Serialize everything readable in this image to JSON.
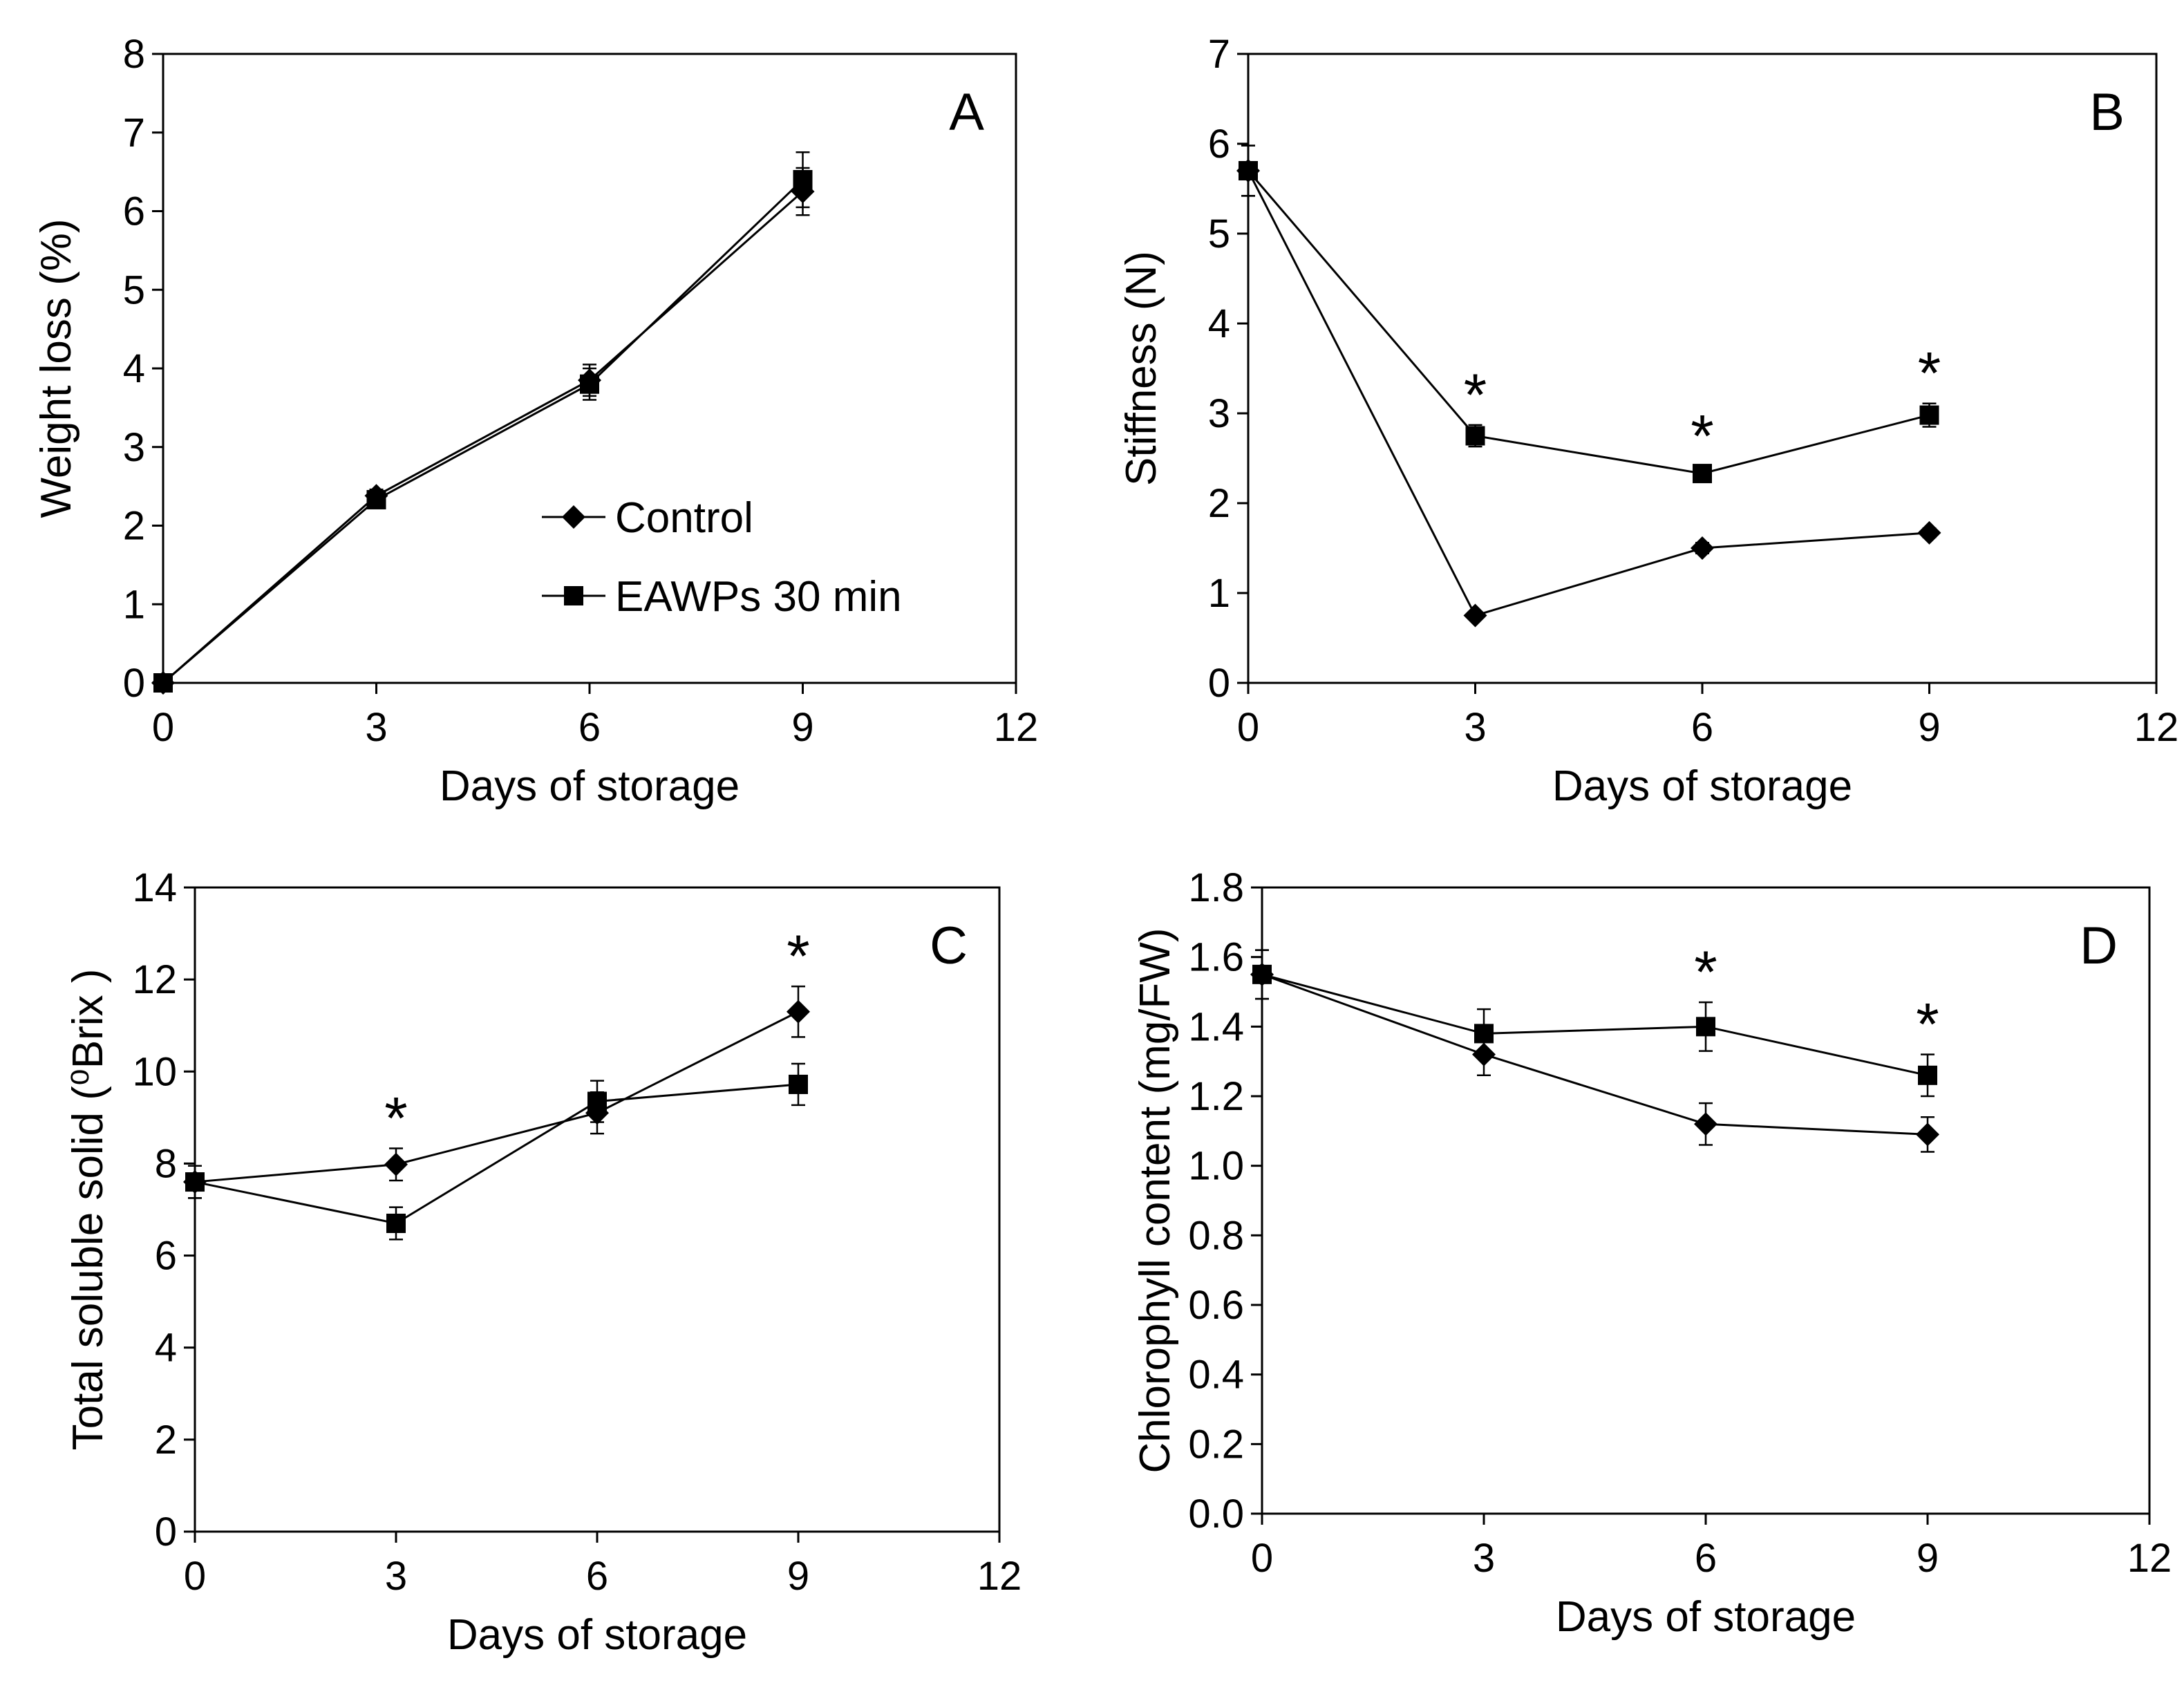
{
  "legend": {
    "control": "Control",
    "eawps": "EAWPs 30 min"
  },
  "chart_data": [
    {
      "panel": "A",
      "type": "line",
      "xlabel": "Days of storage",
      "ylabel": "Weight loss (%)",
      "xlim": [
        0,
        12
      ],
      "ylim": [
        0,
        8
      ],
      "xticks": [
        "0",
        "3",
        "6",
        "9",
        "12"
      ],
      "yticks": [
        "0",
        "1",
        "2",
        "3",
        "4",
        "5",
        "6",
        "7",
        "8"
      ],
      "x": [
        0,
        3,
        6,
        9
      ],
      "series": [
        {
          "name": "Control",
          "marker": "diamond",
          "values": [
            0,
            2.38,
            3.85,
            6.25
          ],
          "errors": [
            0,
            0.08,
            0.2,
            0.3
          ],
          "sig": [
            false,
            false,
            false,
            false
          ]
        },
        {
          "name": "EAWPs 30 min",
          "marker": "square",
          "values": [
            0,
            2.33,
            3.8,
            6.4
          ],
          "errors": [
            0,
            0.08,
            0.2,
            0.35
          ],
          "sig": [
            false,
            false,
            false,
            false
          ]
        }
      ],
      "legend": true
    },
    {
      "panel": "B",
      "type": "line",
      "xlabel": "Days of storage",
      "ylabel": "Stiffness (N)",
      "xlim": [
        0,
        12
      ],
      "ylim": [
        0,
        7
      ],
      "xticks": [
        "0",
        "3",
        "6",
        "9",
        "12"
      ],
      "yticks": [
        "0",
        "1",
        "2",
        "3",
        "4",
        "5",
        "6",
        "7"
      ],
      "x": [
        0,
        3,
        6,
        9
      ],
      "series": [
        {
          "name": "Control",
          "marker": "diamond",
          "values": [
            5.7,
            0.75,
            1.5,
            1.67
          ],
          "errors": [
            0.28,
            0.04,
            0.06,
            0.05
          ],
          "sig": [
            false,
            false,
            false,
            false
          ]
        },
        {
          "name": "EAWPs 30 min",
          "marker": "square",
          "values": [
            5.7,
            2.75,
            2.33,
            2.98
          ],
          "errors": [
            0.28,
            0.12,
            0.08,
            0.13
          ],
          "sig": [
            false,
            true,
            true,
            true
          ]
        }
      ],
      "legend": false
    },
    {
      "panel": "C",
      "type": "line",
      "xlabel": "Days of storage",
      "ylabel": "Total soluble solid (⁰Brix )",
      "xlim": [
        0,
        12
      ],
      "ylim": [
        0,
        14
      ],
      "xticks": [
        "0",
        "3",
        "6",
        "9",
        "12"
      ],
      "yticks": [
        "0",
        "2",
        "4",
        "6",
        "8",
        "10",
        "12",
        "14"
      ],
      "x": [
        0,
        3,
        6,
        9
      ],
      "series": [
        {
          "name": "Control",
          "marker": "diamond",
          "values": [
            7.6,
            7.98,
            9.1,
            11.3
          ],
          "errors": [
            0.35,
            0.35,
            0.45,
            0.55
          ],
          "sig": [
            false,
            false,
            false,
            false
          ]
        },
        {
          "name": "EAWPs 30 min",
          "marker": "square",
          "values": [
            7.6,
            6.7,
            9.35,
            9.72
          ],
          "errors": [
            0.35,
            0.35,
            0.45,
            0.45
          ],
          "sig": [
            false,
            true,
            false,
            true
          ]
        }
      ],
      "legend": false
    },
    {
      "panel": "D",
      "type": "line",
      "xlabel": "Days of storage",
      "ylabel": "Chlorophyll content (mg/FW)",
      "xlim": [
        0,
        12
      ],
      "ylim": [
        0,
        1.8
      ],
      "xticks": [
        "0",
        "3",
        "6",
        "9",
        "12"
      ],
      "yticks": [
        "0.0",
        "0.2",
        "0.4",
        "0.6",
        "0.8",
        "1.0",
        "1.2",
        "1.4",
        "1.6",
        "1.8"
      ],
      "x": [
        0,
        3,
        6,
        9
      ],
      "series": [
        {
          "name": "Control",
          "marker": "diamond",
          "values": [
            1.55,
            1.32,
            1.12,
            1.09
          ],
          "errors": [
            0.07,
            0.06,
            0.06,
            0.05
          ],
          "sig": [
            false,
            false,
            false,
            false
          ]
        },
        {
          "name": "EAWPs 30 min",
          "marker": "square",
          "values": [
            1.55,
            1.38,
            1.4,
            1.26
          ],
          "errors": [
            0.07,
            0.07,
            0.07,
            0.06
          ],
          "sig": [
            false,
            false,
            true,
            true
          ]
        }
      ],
      "legend": false
    }
  ]
}
